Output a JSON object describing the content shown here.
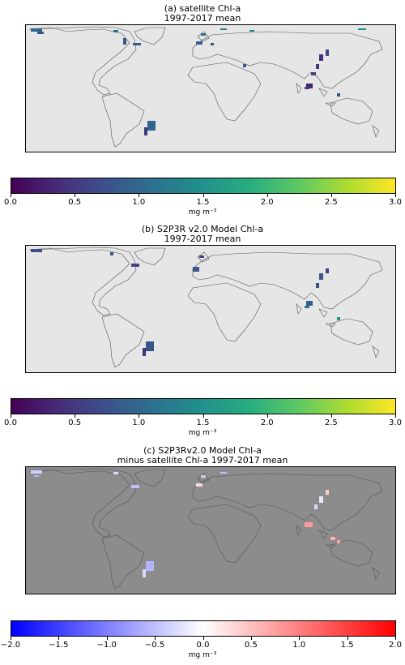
{
  "colors": {
    "land": "#e6e6e6",
    "diff_land": "#8c8c8c",
    "coast": "#555555",
    "viridis": [
      "#440154",
      "#472d7b",
      "#3b528b",
      "#2c728e",
      "#21918c",
      "#28ae80",
      "#5ec962",
      "#addc30",
      "#fde725"
    ],
    "bwr": [
      "#0000ff",
      "#ffffff",
      "#ff0000"
    ]
  },
  "chart_data": [
    {
      "type": "heatmap",
      "title_line1": "(a) satellite Chl-a",
      "title_line2": "1997-2017 mean",
      "colorbar": {
        "colormap": "viridis",
        "vmin": 0.0,
        "vmax": 3.0,
        "ticks": [
          "0.0",
          "0.5",
          "1.0",
          "1.5",
          "2.0",
          "2.5",
          "3.0"
        ],
        "label": "mg m⁻³"
      }
    },
    {
      "type": "heatmap",
      "title_line1": "(b) S2P3R v2.0 Model Chl-a",
      "title_line2": "1997-2017 mean",
      "colorbar": {
        "colormap": "viridis",
        "vmin": 0.0,
        "vmax": 3.0,
        "ticks": [
          "0.0",
          "0.5",
          "1.0",
          "1.5",
          "2.0",
          "2.5",
          "3.0"
        ],
        "label": "mg m⁻³"
      }
    },
    {
      "type": "heatmap",
      "title_line1": "(c) S2P3Rv2.0 Model Chl-a",
      "title_line2": "minus satellite Chl-a 1997-2017 mean",
      "colorbar": {
        "colormap": "bwr",
        "vmin": -2.0,
        "vmax": 2.0,
        "ticks": [
          "−2.0",
          "−1.5",
          "−1.0",
          "−0.5",
          "0.0",
          "0.5",
          "1.0",
          "1.5",
          "2.0"
        ],
        "label": "mg m⁻³"
      }
    }
  ]
}
